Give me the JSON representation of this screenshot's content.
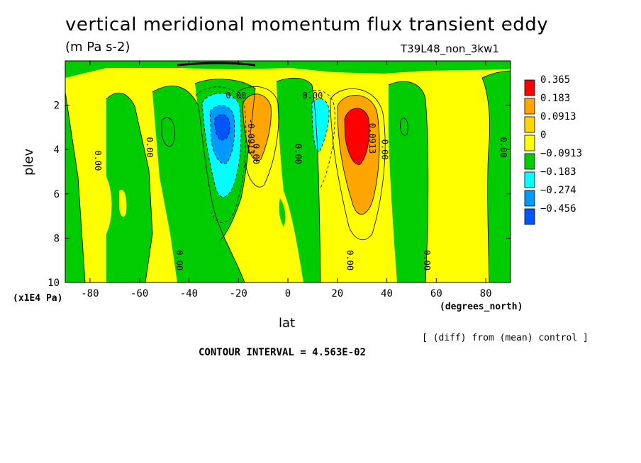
{
  "chart_data": {
    "type": "contour",
    "title": "vertical meridional momentum flux transient eddy",
    "units": "(m Pa s-2)",
    "experiment": "T39L48_non_3kw1",
    "xlabel": "lat",
    "x_units": "(degrees_north)",
    "ylabel": "plev",
    "y_units": "(x1E4 Pa)",
    "xlim": [
      -90,
      90
    ],
    "ylim": [
      10,
      0
    ],
    "x_ticks": [
      "-80",
      "-60",
      "-40",
      "-20",
      "0",
      "20",
      "40",
      "60",
      "80"
    ],
    "y_ticks": [
      "2",
      "4",
      "6",
      "8",
      "10"
    ],
    "contour_interval_text": "CONTOUR INTERVAL = 4.563E-02",
    "note": "[ (diff) from (mean) control ]",
    "colorbar": {
      "labels": [
        "0.365",
        "0.183",
        "0.0913",
        "0",
        "−0.0913",
        "−0.183",
        "−0.274",
        "−0.456"
      ],
      "colors": [
        "#ff0000",
        "#ffa500",
        "#ffd700",
        "#ffff00",
        "#00cc00",
        "#00ffff",
        "#0099ff",
        "#0055ff"
      ]
    },
    "contour_labels": [
      "0.00",
      "0.00",
      "0.00",
      "0.00",
      "0.00",
      "0.00",
      "0.00",
      "0.00",
      "0.00",
      "0.00",
      "0.00",
      "0.00",
      "0.0913",
      "-0.0913"
    ],
    "extrema": [
      {
        "name": "positive max",
        "lat": 28,
        "plev": 3.2,
        "value": 0.365
      },
      {
        "name": "negative min",
        "lat": -27,
        "plev": 3.2,
        "value": -0.456
      }
    ]
  }
}
